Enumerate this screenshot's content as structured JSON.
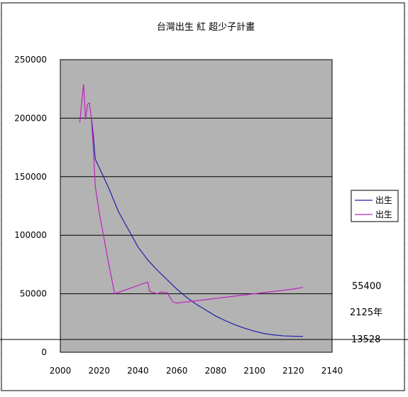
{
  "chart_data": {
    "type": "line",
    "title": "台灣出生 紅 超少子計畫",
    "xlabel": "",
    "ylabel": "",
    "xlim": [
      2000,
      2140
    ],
    "ylim": [
      0,
      250000
    ],
    "x_ticks": [
      "2000",
      "2020",
      "2040",
      "2060",
      "2080",
      "2100",
      "2120",
      "2140"
    ],
    "y_ticks": [
      "0",
      "50000",
      "100000",
      "150000",
      "200000",
      "250000"
    ],
    "grid": true,
    "legend_position": "right",
    "series": [
      {
        "name": "出生",
        "color": "#1f1fa8",
        "points": [
          [
            2016,
            201000
          ],
          [
            2017,
            185000
          ],
          [
            2018,
            165000
          ],
          [
            2020,
            158000
          ],
          [
            2025,
            140000
          ],
          [
            2030,
            120000
          ],
          [
            2035,
            105000
          ],
          [
            2040,
            90000
          ],
          [
            2045,
            79000
          ],
          [
            2050,
            70000
          ],
          [
            2055,
            62000
          ],
          [
            2060,
            54000
          ],
          [
            2065,
            47000
          ],
          [
            2070,
            41000
          ],
          [
            2075,
            36000
          ],
          [
            2080,
            31000
          ],
          [
            2085,
            27000
          ],
          [
            2090,
            23500
          ],
          [
            2095,
            20500
          ],
          [
            2100,
            18000
          ],
          [
            2105,
            16000
          ],
          [
            2110,
            14800
          ],
          [
            2115,
            14000
          ],
          [
            2120,
            13700
          ],
          [
            2125,
            13528
          ]
        ]
      },
      {
        "name": "出生",
        "color": "#c020c0",
        "points": [
          [
            2010,
            196000
          ],
          [
            2011,
            213000
          ],
          [
            2012,
            229000
          ],
          [
            2013,
            199000
          ],
          [
            2014,
            212000
          ],
          [
            2015,
            213000
          ],
          [
            2016,
            200000
          ],
          [
            2017,
            175000
          ],
          [
            2018,
            142000
          ],
          [
            2020,
            120000
          ],
          [
            2025,
            75000
          ],
          [
            2028,
            50000
          ],
          [
            2045,
            60000
          ],
          [
            2046,
            52000
          ],
          [
            2048,
            51000
          ],
          [
            2050,
            50000
          ],
          [
            2052,
            51500
          ],
          [
            2055,
            51000
          ],
          [
            2058,
            43000
          ],
          [
            2060,
            42000
          ],
          [
            2070,
            44000
          ],
          [
            2080,
            46000
          ],
          [
            2090,
            48000
          ],
          [
            2100,
            50000
          ],
          [
            2110,
            52000
          ],
          [
            2120,
            54000
          ],
          [
            2125,
            55400
          ]
        ]
      }
    ]
  },
  "annotations": {
    "value_top": "55400",
    "year": "2125年",
    "value_bottom": "13528"
  }
}
